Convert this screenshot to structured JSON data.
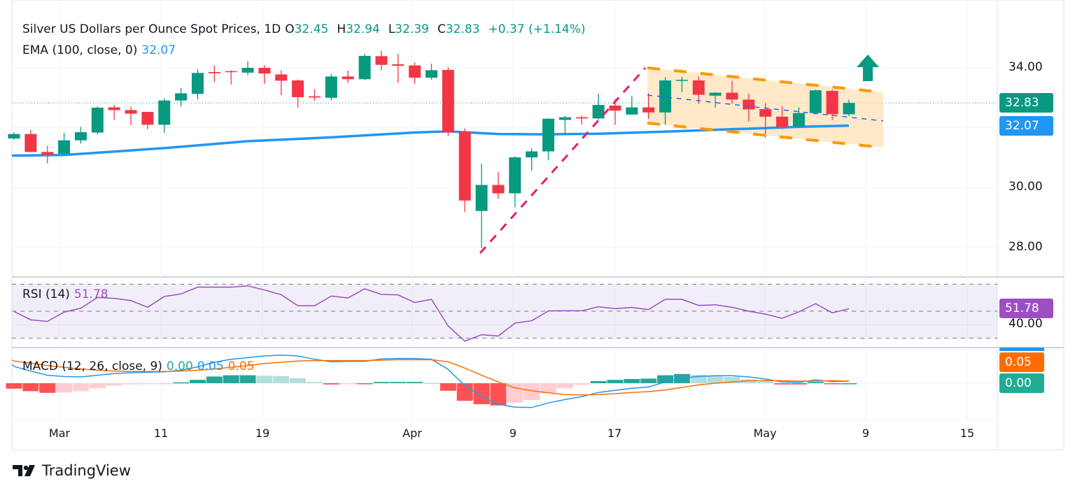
{
  "legend": {
    "title": "Silver US Dollars per Ounce Spot Prices, 1D",
    "open_label": "O",
    "open": "32.45",
    "high_label": "H",
    "high": "32.94",
    "low_label": "L",
    "low": "32.39",
    "close_label": "C",
    "close": "32.83",
    "change": "+0.37 (+1.14%)",
    "ema_label": "EMA (100, close, 0)",
    "ema_value": "32.07",
    "rsi_label": "RSI (14)",
    "rsi_value": "51.78",
    "macd_label": "MACD (12, 26, close, 9)",
    "macd_hist": "0.00",
    "macd_line": "0.05",
    "macd_signal": "0.05"
  },
  "price_axis": [
    "34.00",
    "30.00",
    "28.00"
  ],
  "rsi_axis": [
    "40.00"
  ],
  "badges": {
    "last_price": "32.83",
    "ema": "32.07",
    "rsi": "51.78",
    "macd_signal": "0.05",
    "macd_hist": "0.00"
  },
  "time_axis": [
    "Mar",
    "11",
    "19",
    "Apr",
    "9",
    "17",
    "May",
    "9",
    "15"
  ],
  "brand": "TradingView",
  "colors": {
    "up": "#089981",
    "down": "#f23645",
    "ema": "#2196f3",
    "rsi": "#9c4fc0",
    "signal": "#ff6d00",
    "macd": "#2196f3",
    "channel": "#ff9800",
    "trendline": "#e91e63"
  },
  "chart_data": {
    "type": "candlestick",
    "title": "Silver US Dollars per Ounce Spot Prices, 1D",
    "ylim": [
      27.2,
      35.0
    ],
    "ohlc": [
      [
        31.64,
        31.85,
        31.6,
        31.79
      ],
      [
        31.79,
        31.93,
        31.19,
        31.19
      ],
      [
        31.19,
        31.39,
        30.81,
        31.09
      ],
      [
        31.13,
        31.83,
        31.1,
        31.58
      ],
      [
        31.58,
        32.03,
        31.47,
        31.85
      ],
      [
        31.84,
        32.71,
        31.78,
        32.67
      ],
      [
        32.68,
        32.76,
        32.26,
        32.59
      ],
      [
        32.59,
        32.7,
        32.09,
        32.47
      ],
      [
        32.53,
        32.53,
        31.95,
        32.1
      ],
      [
        32.1,
        32.98,
        31.83,
        32.91
      ],
      [
        32.91,
        33.33,
        32.71,
        33.15
      ],
      [
        33.13,
        33.95,
        32.94,
        33.83
      ],
      [
        33.86,
        34.08,
        33.52,
        33.82
      ],
      [
        33.89,
        33.92,
        33.44,
        33.86
      ],
      [
        33.84,
        34.23,
        33.75,
        34.0
      ],
      [
        34.0,
        34.09,
        33.47,
        33.81
      ],
      [
        33.78,
        33.92,
        33.09,
        33.57
      ],
      [
        33.58,
        33.61,
        32.67,
        33.02
      ],
      [
        33.05,
        33.29,
        32.9,
        33.01
      ],
      [
        33.0,
        33.79,
        32.91,
        33.71
      ],
      [
        33.71,
        33.91,
        33.5,
        33.62
      ],
      [
        33.62,
        34.47,
        33.6,
        34.4
      ],
      [
        34.39,
        34.58,
        33.92,
        34.1
      ],
      [
        34.12,
        34.47,
        33.5,
        34.07
      ],
      [
        34.08,
        34.18,
        33.47,
        33.67
      ],
      [
        33.67,
        34.14,
        33.6,
        33.92
      ],
      [
        33.93,
        34.02,
        31.72,
        31.84
      ],
      [
        31.87,
        31.98,
        29.18,
        29.57
      ],
      [
        29.22,
        30.8,
        27.98,
        30.09
      ],
      [
        30.09,
        30.53,
        29.63,
        29.81
      ],
      [
        29.81,
        31.05,
        29.34,
        31.01
      ],
      [
        31.01,
        31.31,
        30.57,
        31.21
      ],
      [
        31.21,
        32.32,
        30.91,
        32.3
      ],
      [
        32.26,
        32.39,
        31.77,
        32.35
      ],
      [
        32.35,
        32.41,
        32.1,
        32.31
      ],
      [
        32.31,
        33.14,
        32.28,
        32.76
      ],
      [
        32.74,
        32.96,
        32.1,
        32.57
      ],
      [
        32.44,
        33.06,
        32.44,
        32.68
      ],
      [
        32.68,
        33.15,
        32.3,
        32.51
      ],
      [
        32.51,
        33.68,
        32.1,
        33.58
      ],
      [
        33.58,
        33.7,
        33.19,
        33.6
      ],
      [
        33.58,
        33.71,
        32.8,
        33.1
      ],
      [
        33.07,
        33.19,
        32.67,
        33.17
      ],
      [
        33.17,
        33.56,
        32.8,
        32.94
      ],
      [
        32.94,
        33.14,
        32.2,
        32.61
      ],
      [
        32.62,
        32.82,
        31.67,
        32.37
      ],
      [
        32.37,
        32.72,
        31.95,
        32.02
      ],
      [
        32.04,
        32.68,
        32.0,
        32.49
      ],
      [
        32.49,
        33.27,
        32.45,
        33.25
      ],
      [
        33.23,
        33.28,
        32.26,
        32.45
      ],
      [
        32.45,
        32.94,
        32.39,
        32.83
      ]
    ],
    "ema100_keypoints": [
      [
        0,
        31.07
      ],
      [
        3,
        31.09
      ],
      [
        9,
        31.32
      ],
      [
        14,
        31.55
      ],
      [
        19,
        31.68
      ],
      [
        24,
        31.84
      ],
      [
        26,
        31.88
      ],
      [
        27,
        31.85
      ],
      [
        29,
        31.79
      ],
      [
        32,
        31.78
      ],
      [
        35,
        31.8
      ],
      [
        39,
        31.87
      ],
      [
        44,
        31.97
      ],
      [
        47,
        32.03
      ],
      [
        50,
        32.07
      ]
    ],
    "rsi14": [
      49.8,
      43.6,
      42.4,
      49.3,
      52.2,
      60.2,
      59.5,
      57.9,
      52.9,
      60.9,
      62.8,
      67.8,
      67.8,
      67.8,
      68.8,
      65.7,
      62.2,
      54.0,
      54.0,
      61.2,
      59.8,
      66.6,
      62.4,
      62.1,
      56.4,
      58.8,
      39.0,
      27.8,
      32.6,
      31.6,
      41.2,
      42.9,
      50.2,
      50.3,
      50.3,
      53.3,
      51.9,
      52.8,
      51.2,
      58.8,
      58.8,
      54.3,
      54.7,
      52.9,
      50.0,
      47.8,
      44.7,
      49.5,
      55.5,
      48.8,
      51.78
    ],
    "rsi_levels": [
      70,
      50,
      30
    ],
    "macd": [
      0.4,
      0.29,
      0.19,
      0.16,
      0.15,
      0.19,
      0.23,
      0.25,
      0.26,
      0.27,
      0.31,
      0.39,
      0.5,
      0.57,
      0.61,
      0.65,
      0.67,
      0.65,
      0.57,
      0.51,
      0.52,
      0.52,
      0.58,
      0.59,
      0.59,
      0.57,
      0.33,
      -0.06,
      -0.31,
      -0.5,
      -0.57,
      -0.58,
      -0.47,
      -0.39,
      -0.32,
      -0.22,
      -0.17,
      -0.12,
      -0.09,
      0.03,
      0.12,
      0.16,
      0.18,
      0.18,
      0.15,
      0.1,
      0.03,
      0.02,
      0.08,
      0.04,
      0.05
    ],
    "signal": [
      0.53,
      0.48,
      0.42,
      0.38,
      0.34,
      0.31,
      0.29,
      0.28,
      0.28,
      0.28,
      0.29,
      0.31,
      0.34,
      0.38,
      0.42,
      0.47,
      0.5,
      0.53,
      0.54,
      0.54,
      0.54,
      0.54,
      0.55,
      0.56,
      0.56,
      0.56,
      0.51,
      0.36,
      0.19,
      0.03,
      -0.11,
      -0.18,
      -0.23,
      -0.27,
      -0.28,
      -0.27,
      -0.25,
      -0.22,
      -0.2,
      -0.16,
      -0.1,
      -0.04,
      0.0,
      0.03,
      0.06,
      0.06,
      0.06,
      0.05,
      0.05,
      0.06,
      0.05
    ]
  }
}
